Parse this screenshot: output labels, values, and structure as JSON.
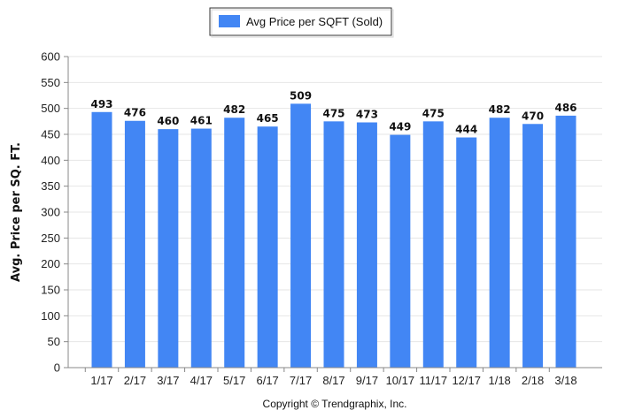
{
  "chart_data": {
    "type": "bar",
    "categories": [
      "1/17",
      "2/17",
      "3/17",
      "4/17",
      "5/17",
      "6/17",
      "7/17",
      "8/17",
      "9/17",
      "10/17",
      "11/17",
      "12/17",
      "1/18",
      "2/18",
      "3/18"
    ],
    "series": [
      {
        "name": "Avg Price per SQFT (Sold)",
        "values": [
          493,
          476,
          460,
          461,
          482,
          465,
          509,
          475,
          473,
          449,
          475,
          444,
          482,
          470,
          486
        ],
        "color": "#4286f4"
      }
    ],
    "ylabel": "Avg. Price per SQ. FT.",
    "xlabel": "",
    "ylim": [
      0,
      600
    ],
    "yticks": [
      0,
      50,
      100,
      150,
      200,
      250,
      300,
      350,
      400,
      450,
      500,
      550,
      600
    ],
    "grid": true,
    "legend_position": "top-center",
    "data_labels": true
  },
  "footer": {
    "copyright": "Copyright © Trendgraphix, Inc."
  },
  "colors": {
    "bar": "#4286f4",
    "grid": "#e6e6e6",
    "axis": "#888888"
  }
}
